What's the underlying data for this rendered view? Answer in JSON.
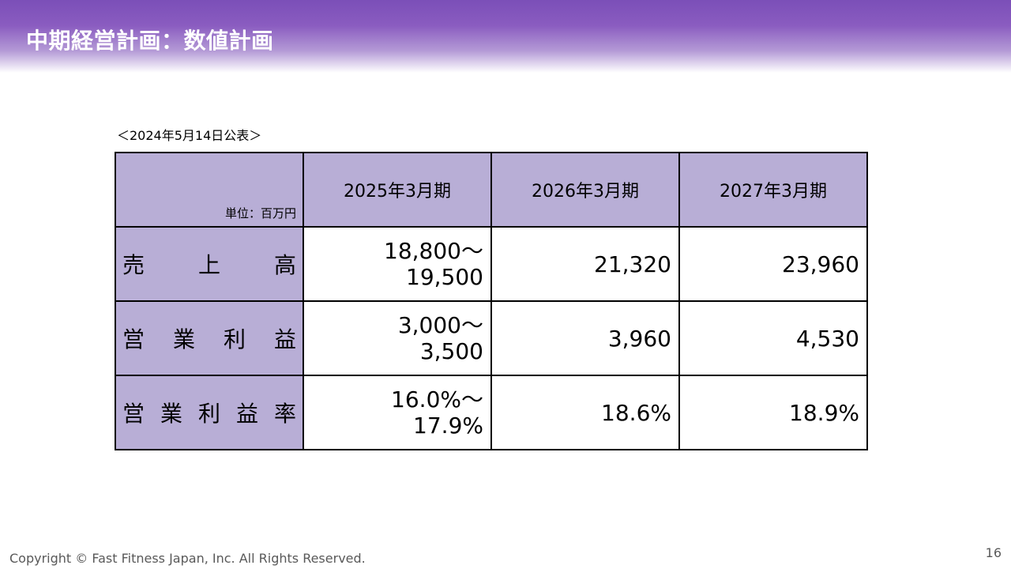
{
  "slide": {
    "title": "中期経営計画：数値計画",
    "date_note": "＜2024年5月14日公表＞",
    "page_number": "16",
    "copyright": "Copyright © Fast Fitness Japan, Inc. All Rights Reserved."
  },
  "table": {
    "unit": "単位：百万円",
    "columns": [
      "2025年3月期",
      "2026年3月期",
      "2027年3月期"
    ],
    "rows": [
      {
        "label_chars": [
          "売",
          "上",
          "高"
        ],
        "values": [
          [
            "18,800～",
            "19,500"
          ],
          [
            "21,320"
          ],
          [
            "23,960"
          ]
        ]
      },
      {
        "label_chars": [
          "営",
          "業",
          "利",
          "益"
        ],
        "values": [
          [
            "3,000～",
            "3,500"
          ],
          [
            "3,960"
          ],
          [
            "4,530"
          ]
        ]
      },
      {
        "label_chars": [
          "営",
          "業",
          "利",
          "益",
          "率"
        ],
        "values": [
          [
            "16.0%～",
            "17.9%"
          ],
          [
            "18.6%"
          ],
          [
            "18.9%"
          ]
        ]
      }
    ]
  },
  "colors": {
    "header_purple": "#7b4fb8",
    "table_lavender": "#b8aed6",
    "footer_gray": "#595959"
  }
}
